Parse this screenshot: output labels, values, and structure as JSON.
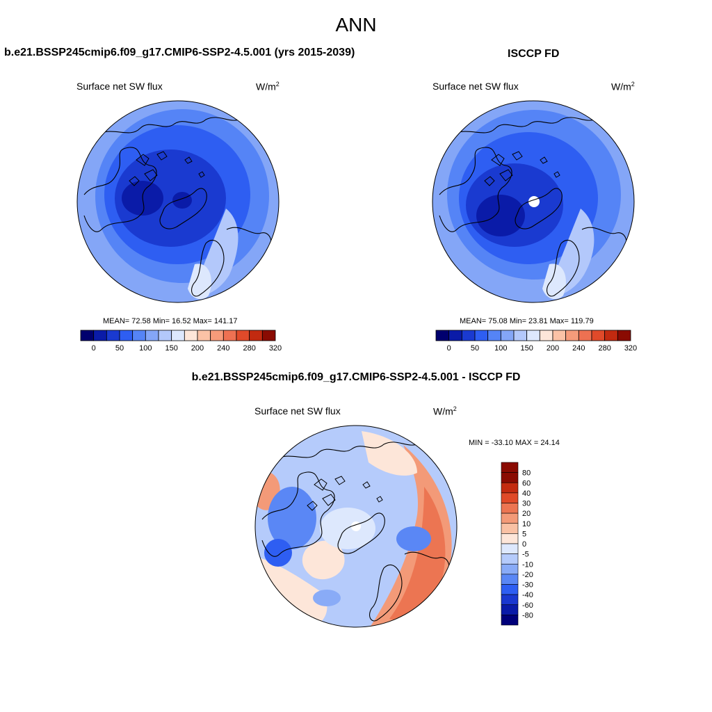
{
  "figure_title": "ANN",
  "colors": {
    "seq": [
      "#00006e",
      "#0a1ba8",
      "#1a3ad0",
      "#2e5ef2",
      "#5584f6",
      "#84a6f7",
      "#b3c8fb",
      "#dde8fd",
      "#fde6d9",
      "#fbc2a6",
      "#f69b7a",
      "#ee7152",
      "#e04a2a",
      "#c22a10",
      "#8a0b02"
    ],
    "diff": [
      "#00007a",
      "#0a1ba8",
      "#1a38d0",
      "#2e5ef2",
      "#5a87f5",
      "#89abf7",
      "#b5cbfb",
      "#dde8fd",
      "#fde6d9",
      "#f9c1a4",
      "#f39a78",
      "#ec7552",
      "#e04a28",
      "#c32b10",
      "#8a0b02"
    ]
  },
  "panels": {
    "model": {
      "title": "b.e21.BSSP245cmip6.f09_g17.CMIP6-SSP2-4.5.001 (yrs 2015-2039)",
      "variable": "Surface net SW flux",
      "units": "W/m",
      "units_sup": "2",
      "stats": "MEAN=  72.58  Min=  16.52  Max= 141.17",
      "colorbar_ticks": [
        "0",
        "50",
        "100",
        "150",
        "200",
        "240",
        "280",
        "320"
      ]
    },
    "obs": {
      "title": "ISCCP FD",
      "variable": "Surface net SW flux",
      "units": "W/m",
      "units_sup": "2",
      "stats": "MEAN=  75.08  Min=  23.81  Max= 119.79",
      "colorbar_ticks": [
        "0",
        "50",
        "100",
        "150",
        "200",
        "240",
        "280",
        "320"
      ]
    },
    "diff": {
      "title": "b.e21.BSSP245cmip6.f09_g17.CMIP6-SSP2-4.5.001 - ISCCP FD",
      "variable": "Surface net SW flux",
      "units": "W/m",
      "units_sup": "2",
      "stats": "MIN = -33.10 MAX =  24.14",
      "colorbar_ticks": [
        "80",
        "60",
        "40",
        "30",
        "20",
        "10",
        "5",
        "0",
        "-5",
        "-10",
        "-20",
        "-30",
        "-40",
        "-60",
        "-80"
      ]
    }
  }
}
